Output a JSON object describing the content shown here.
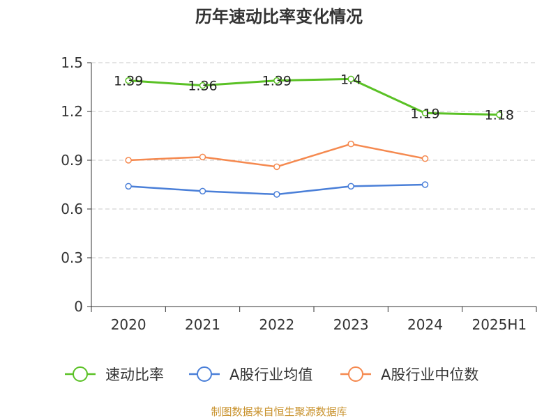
{
  "chart_data": {
    "type": "line",
    "title": "历年速动比率变化情况",
    "categories": [
      "2020",
      "2021",
      "2022",
      "2023",
      "2024",
      "2025H1"
    ],
    "y_ticks": [
      "0",
      "0.3",
      "0.6",
      "0.9",
      "1.2",
      "1.5"
    ],
    "ylim": [
      0,
      1.5
    ],
    "grid": true,
    "legend_position": "bottom",
    "series": [
      {
        "name": "速动比率",
        "color": "#5ac125",
        "values": [
          1.39,
          1.36,
          1.39,
          1.4,
          1.19,
          1.18
        ],
        "labels": [
          "1.39",
          "1.36",
          "1.39",
          "1.4",
          "1.19",
          "1.18"
        ],
        "show_labels": true
      },
      {
        "name": "A股行业均值",
        "color": "#4a7fd8",
        "values": [
          0.74,
          0.71,
          0.69,
          0.74,
          0.75,
          null
        ],
        "show_labels": false
      },
      {
        "name": "A股行业中位数",
        "color": "#f5894f",
        "values": [
          0.9,
          0.92,
          0.86,
          1.0,
          0.91,
          null
        ],
        "show_labels": false
      }
    ],
    "source": "制图数据来自恒生聚源数据库"
  }
}
